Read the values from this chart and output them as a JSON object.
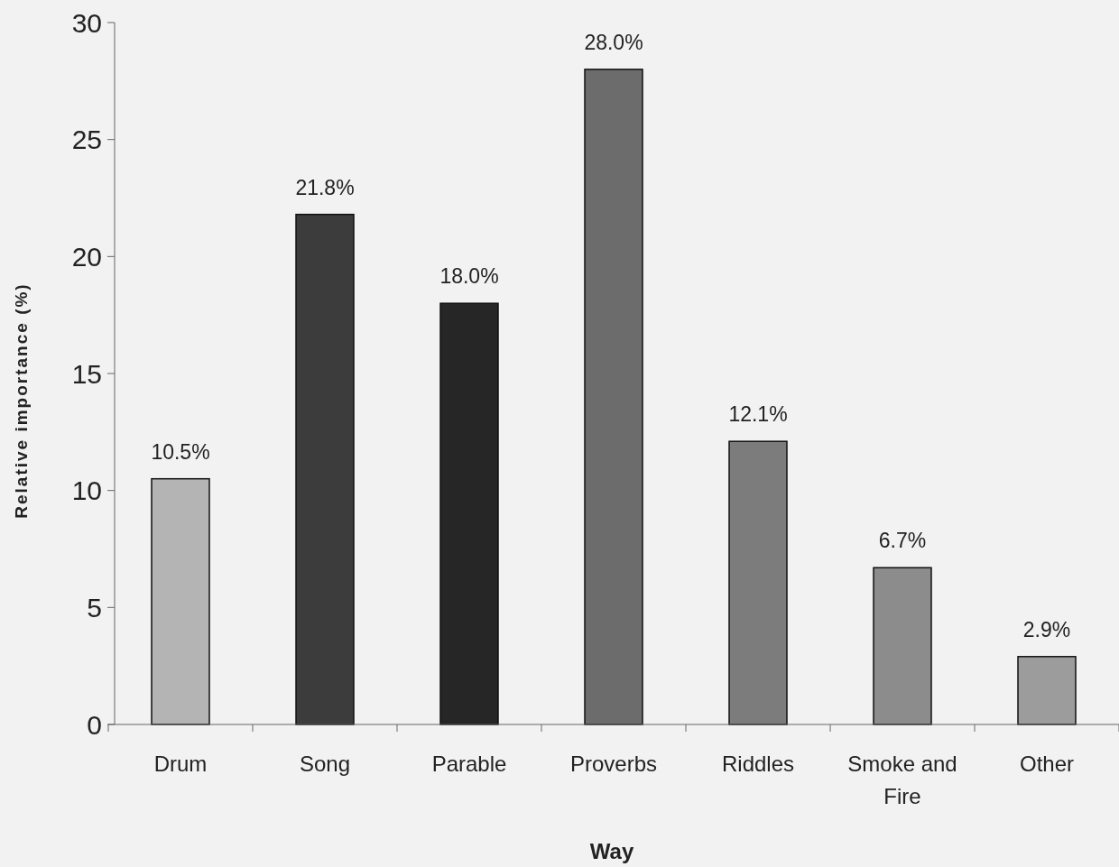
{
  "chart_data": {
    "type": "bar",
    "xlabel": "Way",
    "ylabel": "Relative importance (%)",
    "categories": [
      "Drum",
      "Song",
      "Parable",
      "Proverbs",
      "Riddles",
      "Smoke and Fire",
      "Other"
    ],
    "values": [
      10.5,
      21.8,
      18.0,
      28.0,
      12.1,
      6.7,
      2.9
    ],
    "value_labels": [
      "10.5%",
      "21.8%",
      "18.0%",
      "28.0%",
      "12.1%",
      "6.7%",
      "2.9%"
    ],
    "colors": [
      "#b4b4b4",
      "#3c3c3c",
      "#262626",
      "#6c6c6c",
      "#7c7c7c",
      "#8c8c8c",
      "#9c9c9c"
    ],
    "ylim": [
      0,
      30
    ],
    "yticks": [
      0,
      5,
      10,
      15,
      20,
      25,
      30
    ],
    "grid": false
  }
}
